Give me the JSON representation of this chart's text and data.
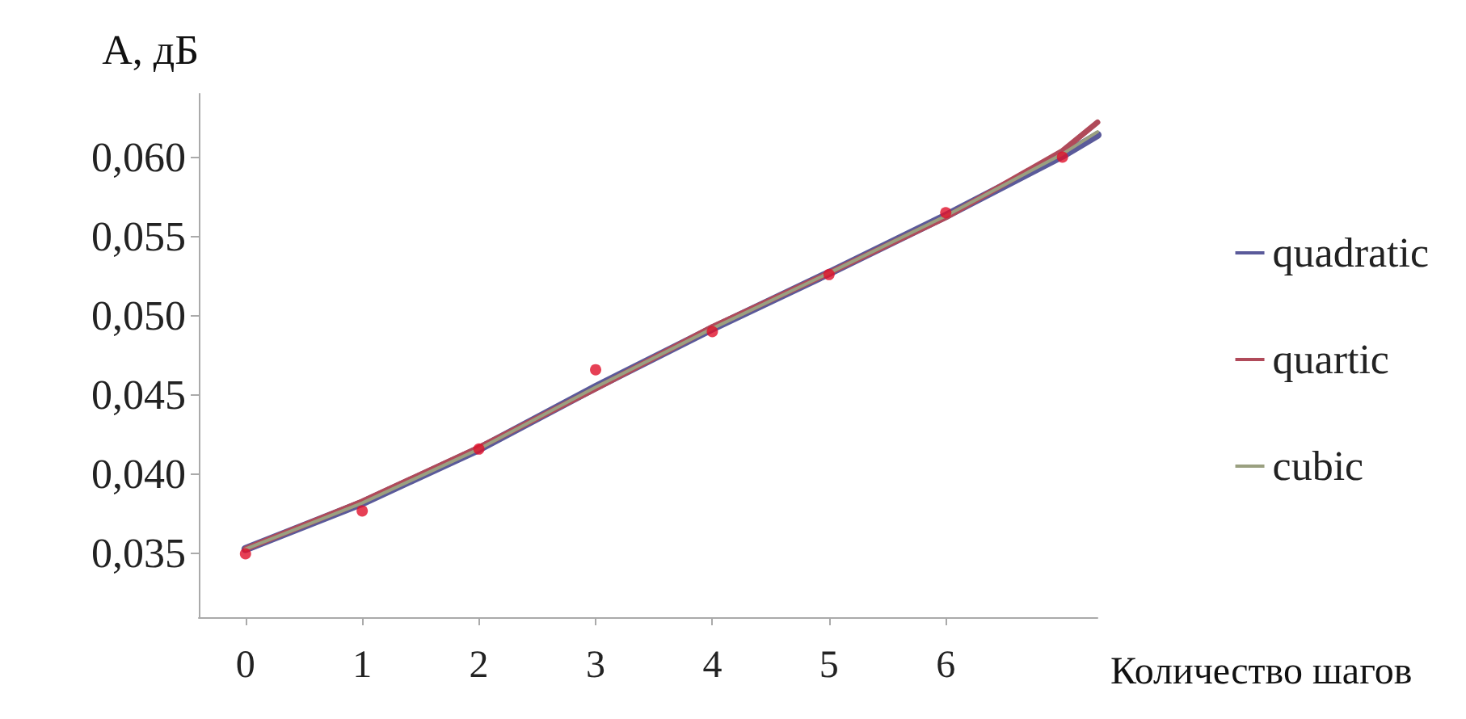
{
  "chart_data": {
    "type": "line",
    "ylabel": "A, дБ",
    "xlabel": "Количество шагов",
    "xlim": [
      -0.4,
      7.3
    ],
    "xticks": [
      0,
      1,
      2,
      3,
      4,
      5,
      6
    ],
    "ylim": [
      0.031,
      0.064
    ],
    "yticks": [
      {
        "value": 0.035,
        "label": "0,035"
      },
      {
        "value": 0.04,
        "label": "0,040"
      },
      {
        "value": 0.045,
        "label": "0,045"
      },
      {
        "value": 0.05,
        "label": "0,050"
      },
      {
        "value": 0.055,
        "label": "0,055"
      },
      {
        "value": 0.06,
        "label": "0,060"
      }
    ],
    "grid": false,
    "legend": "right",
    "marker": "none",
    "line_style": "solid",
    "series": [
      {
        "name": "quadratic",
        "color": "#5a5a9a",
        "x": [
          0,
          1,
          2,
          3,
          4,
          5,
          6,
          7,
          7.3
        ],
        "values": [
          0.0353,
          0.0382,
          0.0416,
          0.0455,
          0.0492,
          0.0527,
          0.0563,
          0.0601,
          0.0614
        ]
      },
      {
        "name": "quartic",
        "color": "#b04a5a",
        "x": [
          0,
          1,
          2,
          3,
          4,
          5,
          6,
          7,
          7.3
        ],
        "values": [
          0.0353,
          0.0383,
          0.0417,
          0.0454,
          0.0493,
          0.0527,
          0.0562,
          0.0604,
          0.0622
        ]
      },
      {
        "name": "cubic",
        "color": "#9aa080",
        "x": [
          0,
          1,
          2,
          3,
          4,
          5,
          6,
          7,
          7.3
        ],
        "values": [
          0.0353,
          0.0382,
          0.0416,
          0.0455,
          0.0492,
          0.0527,
          0.0563,
          0.0602,
          0.0616
        ]
      },
      {
        "type": "scatter",
        "marker": "circle",
        "color": "#e0102a",
        "x": [
          0,
          1,
          2,
          3,
          4,
          5,
          6,
          7
        ],
        "values": [
          0.035,
          0.0377,
          0.0416,
          0.0466,
          0.049,
          0.0526,
          0.0565,
          0.06
        ]
      }
    ]
  }
}
